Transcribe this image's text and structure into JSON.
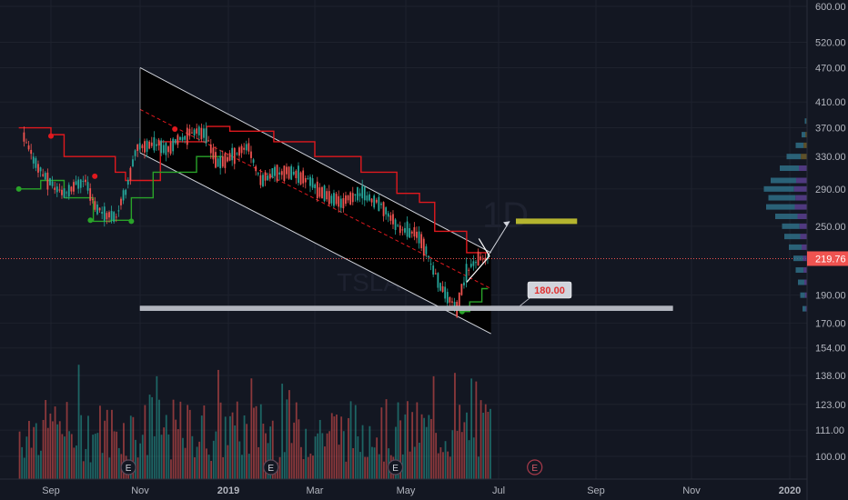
{
  "chart_data": {
    "type": "candlestick",
    "title": "",
    "watermark": {
      "ticker": "TSLA",
      "interval": "1D"
    },
    "price_axis": {
      "scale": "log",
      "ticks": [
        "600.00",
        "520.00",
        "470.00",
        "410.00",
        "370.00",
        "330.00",
        "290.00",
        "250.00",
        "219.76",
        "190.00",
        "170.00",
        "154.00",
        "138.00",
        "123.00",
        "111.00",
        "100.00"
      ],
      "tick_values": [
        600,
        520,
        470,
        410,
        370,
        330,
        290,
        250,
        219.76,
        190,
        170,
        154,
        138,
        123,
        111,
        100
      ],
      "last_price": "219.76",
      "last_price_value": 219.76
    },
    "time_axis": {
      "ticks": [
        "Sep",
        "Nov",
        "2019",
        "Mar",
        "May",
        "Jul",
        "Sep",
        "Nov",
        "2020"
      ],
      "tick_dates": [
        "2018-09-01",
        "2018-11-01",
        "2019-01-01",
        "2019-03-01",
        "2019-05-01",
        "2019-07-01",
        "2019-09-01",
        "2019-11-01",
        "2020-01-01"
      ],
      "bold": [
        "2019",
        "2020"
      ],
      "range": [
        "2018-08-10",
        "2020-01-20"
      ]
    },
    "price_path": [
      [
        "2018-08-13",
        355
      ],
      [
        "2018-08-20",
        325
      ],
      [
        "2018-08-27",
        305
      ],
      [
        "2018-09-04",
        290
      ],
      [
        "2018-09-10",
        285
      ],
      [
        "2018-09-17",
        295
      ],
      [
        "2018-09-24",
        300
      ],
      [
        "2018-10-01",
        270
      ],
      [
        "2018-10-08",
        262
      ],
      [
        "2018-10-15",
        260
      ],
      [
        "2018-10-22",
        290
      ],
      [
        "2018-10-29",
        340
      ],
      [
        "2018-11-05",
        345
      ],
      [
        "2018-11-12",
        348
      ],
      [
        "2018-11-19",
        340
      ],
      [
        "2018-11-26",
        350
      ],
      [
        "2018-12-03",
        360
      ],
      [
        "2018-12-10",
        368
      ],
      [
        "2018-12-17",
        355
      ],
      [
        "2018-12-24",
        320
      ],
      [
        "2019-01-02",
        330
      ],
      [
        "2019-01-14",
        345
      ],
      [
        "2019-01-22",
        300
      ],
      [
        "2019-02-01",
        310
      ],
      [
        "2019-02-11",
        310
      ],
      [
        "2019-02-25",
        300
      ],
      [
        "2019-03-05",
        285
      ],
      [
        "2019-03-18",
        275
      ],
      [
        "2019-04-01",
        285
      ],
      [
        "2019-04-15",
        270
      ],
      [
        "2019-04-25",
        250
      ],
      [
        "2019-05-03",
        245
      ],
      [
        "2019-05-10",
        240
      ],
      [
        "2019-05-17",
        215
      ],
      [
        "2019-05-24",
        195
      ],
      [
        "2019-06-03",
        180
      ],
      [
        "2019-06-10",
        210
      ],
      [
        "2019-06-17",
        220
      ],
      [
        "2019-06-24",
        219.76
      ]
    ],
    "supertrend_red": [
      [
        "2018-08-10",
        370
      ],
      [
        "2018-09-01",
        360
      ],
      [
        "2018-09-10",
        330
      ],
      [
        "2018-10-15",
        310
      ],
      [
        "2018-10-22",
        300
      ],
      [
        "2018-11-15",
        350
      ],
      [
        "2018-12-17",
        372
      ],
      [
        "2019-01-02",
        365
      ],
      [
        "2019-02-01",
        350
      ],
      [
        "2019-03-01",
        330
      ],
      [
        "2019-04-01",
        310
      ],
      [
        "2019-04-25",
        285
      ],
      [
        "2019-05-10",
        275
      ],
      [
        "2019-05-20",
        245
      ],
      [
        "2019-06-10",
        225
      ],
      [
        "2019-06-24",
        222
      ]
    ],
    "supertrend_green": [
      [
        "2018-08-10",
        290
      ],
      [
        "2018-08-25",
        300
      ],
      [
        "2018-09-10",
        280
      ],
      [
        "2018-09-30",
        255
      ],
      [
        "2018-10-12",
        256
      ],
      [
        "2018-10-26",
        280
      ],
      [
        "2018-11-10",
        310
      ],
      [
        "2018-12-10",
        330
      ],
      [
        "2018-12-28",
        330
      ]
    ],
    "supertrend_green_2": [
      [
        "2019-06-05",
        178
      ],
      [
        "2019-06-12",
        185
      ],
      [
        "2019-06-20",
        195
      ],
      [
        "2019-06-24",
        195
      ]
    ],
    "channel": {
      "upper": [
        [
          "2018-11-01",
          470
        ],
        [
          "2019-06-26",
          225
        ]
      ],
      "lower": [
        [
          "2018-11-01",
          335
        ],
        [
          "2019-06-26",
          163
        ]
      ],
      "mid": [
        [
          "2018-11-01",
          398
        ],
        [
          "2019-06-26",
          195
        ]
      ]
    },
    "support_line": {
      "value": 180,
      "from": "2018-11-01",
      "to": "2019-10-20",
      "label": "180.00"
    },
    "target_box": {
      "value": 255,
      "from": "2019-07-12",
      "to": "2019-08-20"
    },
    "projection_arrow": {
      "from": [
        "2019-06-24",
        222
      ],
      "to": [
        "2019-07-08",
        255
      ]
    },
    "earnings_markers": {
      "label": "E",
      "dates": [
        "2018-10-24",
        "2019-01-30",
        "2019-04-24",
        "2019-07-24"
      ]
    },
    "volume_profile_level": [
      [
        380,
        0.05
      ],
      [
        360,
        0.12
      ],
      [
        345,
        0.25
      ],
      [
        330,
        0.45
      ],
      [
        315,
        0.6
      ],
      [
        300,
        0.8
      ],
      [
        290,
        0.95
      ],
      [
        280,
        0.85
      ],
      [
        270,
        0.9
      ],
      [
        260,
        0.7
      ],
      [
        250,
        0.55
      ],
      [
        240,
        0.5
      ],
      [
        230,
        0.4
      ],
      [
        220,
        0.3
      ],
      [
        210,
        0.25
      ],
      [
        200,
        0.2
      ],
      [
        190,
        0.15
      ],
      [
        180,
        0.1
      ]
    ],
    "colors": {
      "background": "#131722",
      "up": "#26a69a",
      "down": "#ef5350",
      "supertrend_red": "#e0191e",
      "supertrend_green": "#29a329",
      "channel_line": "#d1d4dc",
      "support_line": "#b2b5be",
      "target_box": "#b5b52f",
      "label_price": "#e03030"
    }
  }
}
